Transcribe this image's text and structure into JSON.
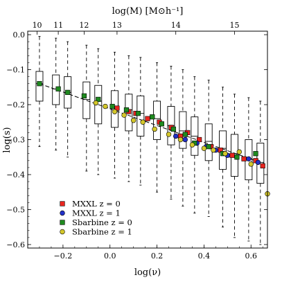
{
  "chart_data": {
    "type": "box",
    "xlabel": "log(ν)",
    "ylabel": "log(s)",
    "top_xlabel": "log(M)  [M⊙h⁻¹]",
    "xlim": [
      -0.35,
      0.67
    ],
    "ylim": [
      -0.61,
      0.01
    ],
    "xticks": [
      -0.2,
      0.0,
      0.2,
      0.4,
      0.6
    ],
    "xtick_labels": [
      "−0.2",
      "0.0",
      "0.2",
      "0.4",
      "0.6"
    ],
    "yticks": [
      0.0,
      -0.1,
      -0.2,
      -0.3,
      -0.4,
      -0.5,
      -0.6
    ],
    "ytick_labels": [
      "0.0",
      "−0.1",
      "−0.2",
      "−0.3",
      "−0.4",
      "−0.5",
      "−0.6"
    ],
    "top_ticks": [
      {
        "label": "10",
        "x": -0.31
      },
      {
        "label": "11",
        "x": -0.22
      },
      {
        "label": "12",
        "x": -0.11
      },
      {
        "label": "13",
        "x": 0.03
      },
      {
        "label": "14",
        "x": 0.28
      },
      {
        "label": "15",
        "x": 0.53
      }
    ],
    "grid": false,
    "legend_position": "bottom-left",
    "boxes": [
      {
        "x": -0.3,
        "whisker_low": -0.32,
        "q1": -0.19,
        "median": -0.14,
        "q3": -0.105,
        "whisker_high": -0.005
      },
      {
        "x": -0.23,
        "whisker_low": -0.33,
        "q1": -0.2,
        "median": -0.155,
        "q3": -0.115,
        "whisker_high": -0.01
      },
      {
        "x": -0.18,
        "whisker_low": -0.35,
        "q1": -0.21,
        "median": -0.165,
        "q3": -0.12,
        "whisker_high": -0.02
      },
      {
        "x": -0.1,
        "whisker_low": -0.39,
        "q1": -0.24,
        "median": -0.185,
        "q3": -0.135,
        "whisker_high": -0.03
      },
      {
        "x": -0.05,
        "whisker_low": -0.4,
        "q1": -0.255,
        "median": -0.19,
        "q3": -0.145,
        "whisker_high": -0.04
      },
      {
        "x": 0.02,
        "whisker_low": -0.41,
        "q1": -0.265,
        "median": -0.21,
        "q3": -0.16,
        "whisker_high": -0.05
      },
      {
        "x": 0.08,
        "whisker_low": -0.42,
        "q1": -0.275,
        "median": -0.215,
        "q3": -0.17,
        "whisker_high": -0.06
      },
      {
        "x": 0.13,
        "whisker_low": -0.43,
        "q1": -0.29,
        "median": -0.225,
        "q3": -0.175,
        "whisker_high": -0.065
      },
      {
        "x": 0.2,
        "whisker_low": -0.45,
        "q1": -0.3,
        "median": -0.24,
        "q3": -0.19,
        "whisker_high": -0.08
      },
      {
        "x": 0.26,
        "whisker_low": -0.47,
        "q1": -0.315,
        "median": -0.26,
        "q3": -0.205,
        "whisker_high": -0.09
      },
      {
        "x": 0.31,
        "whisker_low": -0.49,
        "q1": -0.325,
        "median": -0.275,
        "q3": -0.22,
        "whisker_high": -0.1
      },
      {
        "x": 0.36,
        "whisker_low": -0.51,
        "q1": -0.345,
        "median": -0.29,
        "q3": -0.235,
        "whisker_high": -0.12
      },
      {
        "x": 0.42,
        "whisker_low": -0.52,
        "q1": -0.36,
        "median": -0.305,
        "q3": -0.255,
        "whisker_high": -0.13
      },
      {
        "x": 0.48,
        "whisker_low": -0.55,
        "q1": -0.385,
        "median": -0.325,
        "q3": -0.275,
        "whisker_high": -0.15
      },
      {
        "x": 0.53,
        "whisker_low": -0.58,
        "q1": -0.405,
        "median": -0.34,
        "q3": -0.285,
        "whisker_high": -0.17
      },
      {
        "x": 0.59,
        "whisker_low": -0.59,
        "q1": -0.415,
        "median": -0.355,
        "q3": -0.3,
        "whisker_high": -0.18
      },
      {
        "x": 0.64,
        "whisker_low": -0.6,
        "q1": -0.425,
        "median": -0.365,
        "q3": -0.31,
        "whisker_high": -0.19
      }
    ],
    "fit_line": {
      "x": [
        -0.3,
        0.66
      ],
      "y": [
        -0.14,
        -0.37
      ]
    },
    "series": [
      {
        "name": "MXXL z = 0",
        "color": "#e8251f",
        "marker": "square",
        "points": [
          [
            0.03,
            -0.21
          ],
          [
            0.08,
            -0.22
          ],
          [
            0.11,
            -0.225
          ],
          [
            0.16,
            -0.24
          ],
          [
            0.21,
            -0.25
          ],
          [
            0.26,
            -0.265
          ],
          [
            0.3,
            -0.29
          ],
          [
            0.33,
            -0.28
          ],
          [
            0.38,
            -0.3
          ],
          [
            0.43,
            -0.32
          ],
          [
            0.47,
            -0.33
          ],
          [
            0.52,
            -0.345
          ],
          [
            0.57,
            -0.355
          ],
          [
            0.62,
            -0.36
          ],
          [
            0.65,
            -0.375
          ]
        ]
      },
      {
        "name": "MXXL z = 1",
        "color": "#2230c8",
        "marker": "circle",
        "points": [
          [
            0.28,
            -0.29
          ],
          [
            0.32,
            -0.3
          ],
          [
            0.37,
            -0.31
          ],
          [
            0.41,
            -0.32
          ],
          [
            0.45,
            -0.33
          ],
          [
            0.5,
            -0.345
          ],
          [
            0.54,
            -0.35
          ],
          [
            0.59,
            -0.355
          ],
          [
            0.63,
            -0.365
          ]
        ]
      },
      {
        "name": "Sbarbine z = 0",
        "color": "#1f8a1f",
        "marker": "square",
        "points": [
          [
            -0.3,
            -0.14
          ],
          [
            -0.22,
            -0.155
          ],
          [
            -0.18,
            -0.165
          ],
          [
            -0.11,
            -0.175
          ],
          [
            -0.05,
            -0.185
          ],
          [
            0.01,
            -0.205
          ],
          [
            0.07,
            -0.215
          ],
          [
            0.12,
            -0.225
          ],
          [
            0.18,
            -0.235
          ],
          [
            0.22,
            -0.255
          ],
          [
            0.27,
            -0.27
          ],
          [
            0.32,
            -0.285
          ],
          [
            0.36,
            -0.31
          ],
          [
            0.42,
            -0.32
          ],
          [
            0.48,
            -0.34
          ],
          [
            0.54,
            -0.35
          ],
          [
            0.62,
            -0.34
          ]
        ]
      },
      {
        "name": "Sbarbine z = 1",
        "color": "#d4c72a",
        "marker": "circle",
        "points": [
          [
            -0.06,
            -0.195
          ],
          [
            -0.02,
            -0.205
          ],
          [
            0.02,
            -0.22
          ],
          [
            0.06,
            -0.23
          ],
          [
            0.1,
            -0.245
          ],
          [
            0.14,
            -0.25
          ],
          [
            0.19,
            -0.27
          ],
          [
            0.25,
            -0.285
          ],
          [
            0.3,
            -0.3
          ],
          [
            0.35,
            -0.315
          ],
          [
            0.4,
            -0.325
          ],
          [
            0.44,
            -0.33
          ],
          [
            0.49,
            -0.34
          ],
          [
            0.55,
            -0.335
          ],
          [
            0.6,
            -0.37
          ],
          [
            0.67,
            -0.455
          ]
        ]
      }
    ]
  }
}
